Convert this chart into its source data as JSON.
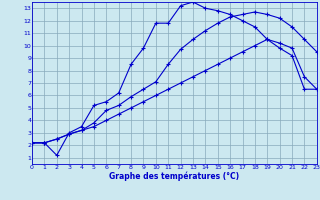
{
  "xlabel": "Graphe des températures (°C)",
  "xlim": [
    0,
    23
  ],
  "ylim": [
    0.5,
    13.5
  ],
  "xticks": [
    0,
    1,
    2,
    3,
    4,
    5,
    6,
    7,
    8,
    9,
    10,
    11,
    12,
    13,
    14,
    15,
    16,
    17,
    18,
    19,
    20,
    21,
    22,
    23
  ],
  "yticks": [
    1,
    2,
    3,
    4,
    5,
    6,
    7,
    8,
    9,
    10,
    11,
    12,
    13
  ],
  "bg_color": "#cce8f0",
  "grid_color": "#88aabb",
  "line_color": "#0000cc",
  "line1_x": [
    0,
    1,
    2,
    3,
    4,
    5,
    6,
    7,
    8,
    9,
    10,
    11,
    12,
    13,
    14,
    15,
    16,
    17,
    18,
    19,
    20,
    21,
    22,
    23
  ],
  "line1_y": [
    2.2,
    2.2,
    2.5,
    2.9,
    3.2,
    3.8,
    4.8,
    5.2,
    5.9,
    6.5,
    7.1,
    8.5,
    9.7,
    10.5,
    11.2,
    11.8,
    12.3,
    12.5,
    12.7,
    12.5,
    12.2,
    11.5,
    10.5,
    9.5
  ],
  "line2_x": [
    0,
    1,
    2,
    3,
    4,
    5,
    6,
    7,
    8,
    9,
    10,
    11,
    12,
    13,
    14,
    15,
    16,
    17,
    18,
    19,
    20,
    21,
    22,
    23
  ],
  "line2_y": [
    2.2,
    2.2,
    1.2,
    3.0,
    3.5,
    5.2,
    5.5,
    6.2,
    8.5,
    9.8,
    11.8,
    11.8,
    13.2,
    13.5,
    13.0,
    12.8,
    12.5,
    12.0,
    11.5,
    10.5,
    10.2,
    9.8,
    7.5,
    6.5
  ],
  "line3_x": [
    0,
    1,
    2,
    3,
    4,
    5,
    6,
    7,
    8,
    9,
    10,
    11,
    12,
    13,
    14,
    15,
    16,
    17,
    18,
    19,
    20,
    21,
    22,
    23
  ],
  "line3_y": [
    2.2,
    2.2,
    2.5,
    2.9,
    3.2,
    3.5,
    4.0,
    4.5,
    5.0,
    5.5,
    6.0,
    6.5,
    7.0,
    7.5,
    8.0,
    8.5,
    9.0,
    9.5,
    10.0,
    10.5,
    9.8,
    9.2,
    6.5,
    6.5
  ]
}
